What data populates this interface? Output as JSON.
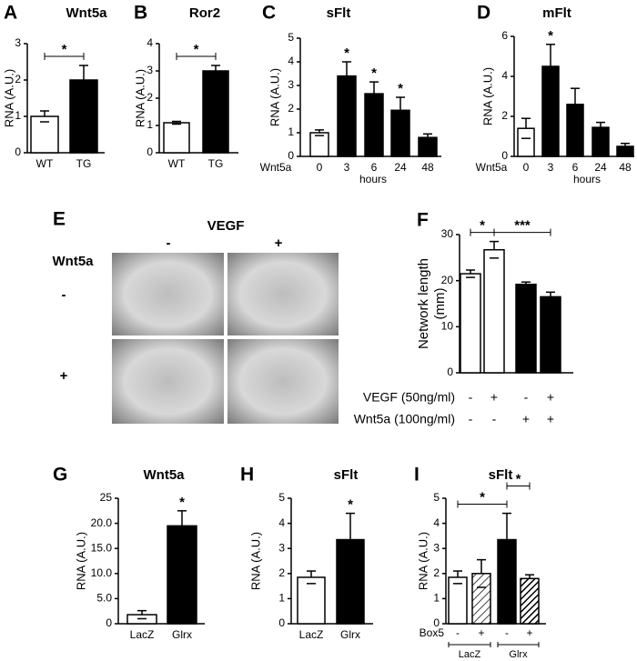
{
  "chart_data": [
    {
      "type": "bar",
      "letter": "A",
      "title": "Wnt5a",
      "ylabel": "RNA (A.U.)",
      "categories": [
        "WT",
        "TG"
      ],
      "values": [
        1.0,
        2.0
      ],
      "errors": [
        0.15,
        0.4
      ],
      "colors": [
        "#ffffff",
        "#000000"
      ],
      "ylim": [
        0,
        3
      ],
      "yticks": [
        0,
        1,
        2,
        3
      ],
      "brackets": [
        {
          "from": 0,
          "to": 1,
          "label": "*"
        }
      ]
    },
    {
      "type": "bar",
      "letter": "B",
      "title": "Ror2",
      "ylabel": "RNA (A.U.)",
      "categories": [
        "WT",
        "TG"
      ],
      "values": [
        1.1,
        3.0
      ],
      "errors": [
        0.05,
        0.2
      ],
      "colors": [
        "#ffffff",
        "#000000"
      ],
      "ylim": [
        0,
        4
      ],
      "yticks": [
        0,
        1,
        2,
        3,
        4
      ],
      "brackets": [
        {
          "from": 0,
          "to": 1,
          "label": "*"
        }
      ]
    },
    {
      "type": "bar",
      "letter": "C",
      "title": "sFlt",
      "ylabel": "RNA (A.U.)",
      "xlabel": "hours",
      "row_label": "Wnt5a",
      "categories": [
        "0",
        "3",
        "6",
        "24",
        "48"
      ],
      "values": [
        1.0,
        3.4,
        2.65,
        1.95,
        0.8
      ],
      "errors": [
        0.12,
        0.6,
        0.5,
        0.55,
        0.15
      ],
      "colors": [
        "#ffffff",
        "#000000",
        "#000000",
        "#000000",
        "#000000"
      ],
      "annotations": [
        null,
        "*",
        "*",
        "*",
        null
      ],
      "ylim": [
        0,
        5
      ],
      "yticks": [
        0,
        1,
        2,
        3,
        4,
        5
      ]
    },
    {
      "type": "bar",
      "letter": "D",
      "title": "mFlt",
      "ylabel": "RNA (A.U.)",
      "xlabel": "hours",
      "row_label": "Wnt5a",
      "categories": [
        "0",
        "3",
        "6",
        "24",
        "48"
      ],
      "values": [
        1.4,
        4.5,
        2.6,
        1.45,
        0.5
      ],
      "errors": [
        0.5,
        1.1,
        0.8,
        0.25,
        0.15
      ],
      "colors": [
        "#ffffff",
        "#000000",
        "#000000",
        "#000000",
        "#000000"
      ],
      "annotations": [
        null,
        "*",
        null,
        null,
        null
      ],
      "ylim": [
        0,
        6
      ],
      "yticks": [
        0,
        2,
        4,
        6
      ]
    },
    {
      "type": "bar",
      "letter": "F",
      "ylabel": [
        "Network length",
        "(mm)"
      ],
      "values": [
        21.5,
        26.7,
        19.2,
        16.5
      ],
      "errors": [
        0.8,
        1.8,
        0.5,
        1.0
      ],
      "colors": [
        "#ffffff",
        "#ffffff",
        "#000000",
        "#000000"
      ],
      "ylim": [
        0,
        30
      ],
      "yticks": [
        0,
        10,
        20,
        30
      ],
      "rows": [
        {
          "label": "VEGF (50ng/ml)",
          "values": [
            "-",
            "+",
            "-",
            "+"
          ]
        },
        {
          "label": "Wnt5a (100ng/ml)",
          "values": [
            "-",
            "-",
            "+",
            "+"
          ]
        }
      ],
      "brackets": [
        {
          "from": 0,
          "to": 1,
          "label": "*"
        },
        {
          "from": 1,
          "to": 3,
          "label": "***"
        }
      ]
    },
    {
      "type": "bar",
      "letter": "G",
      "title": "Wnt5a",
      "ylabel": "RNA (A.U.)",
      "categories": [
        "LacZ",
        "Glrx"
      ],
      "values": [
        1.8,
        19.5
      ],
      "errors": [
        0.8,
        3.0
      ],
      "colors": [
        "#ffffff",
        "#000000"
      ],
      "annotations": [
        null,
        "*"
      ],
      "ylim": [
        0,
        25
      ],
      "yticks": [
        0,
        {
          "value": 5,
          "label": "5.0"
        },
        {
          "value": 10,
          "label": "10.0"
        },
        {
          "value": 15,
          "label": "15.0"
        },
        {
          "value": 20,
          "label": "20.0"
        },
        25
      ]
    },
    {
      "type": "bar",
      "letter": "H",
      "title": "sFlt",
      "ylabel": "RNA (A.U.)",
      "categories": [
        "LacZ",
        "Glrx"
      ],
      "values": [
        1.85,
        3.35
      ],
      "errors": [
        0.25,
        1.05
      ],
      "colors": [
        "#ffffff",
        "#000000"
      ],
      "annotations": [
        null,
        "*"
      ],
      "ylim": [
        0,
        5
      ],
      "yticks": [
        0,
        1,
        2,
        3,
        4,
        5
      ]
    },
    {
      "type": "bar",
      "letter": "I",
      "title": "sFlt",
      "ylabel": "RNA (A.U.)",
      "values": [
        1.85,
        2.0,
        3.35,
        1.8
      ],
      "errors": [
        0.25,
        0.55,
        1.05,
        0.15
      ],
      "colors": [
        "#ffffff",
        "#ffffff",
        "#000000",
        "#000000"
      ],
      "hatch": [
        false,
        true,
        false,
        true
      ],
      "ylim": [
        0,
        5
      ],
      "yticks": [
        0,
        1,
        2,
        3,
        4,
        5
      ],
      "rows": [
        {
          "label": "Box5",
          "values": [
            "-",
            "+",
            "-",
            "+"
          ]
        }
      ],
      "groups": [
        {
          "label": "LacZ",
          "from": 0,
          "to": 1
        },
        {
          "label": "Glrx",
          "from": 2,
          "to": 3
        }
      ],
      "brackets": [
        {
          "from": 0,
          "to": 2,
          "label": "*"
        },
        {
          "from": 2,
          "to": 3,
          "label": "*"
        }
      ]
    }
  ],
  "image_panel": {
    "letter": "E",
    "title": "VEGF",
    "column_labels": [
      "-",
      "+"
    ],
    "row_title": "Wnt5a",
    "row_labels": [
      "-",
      "+"
    ]
  }
}
